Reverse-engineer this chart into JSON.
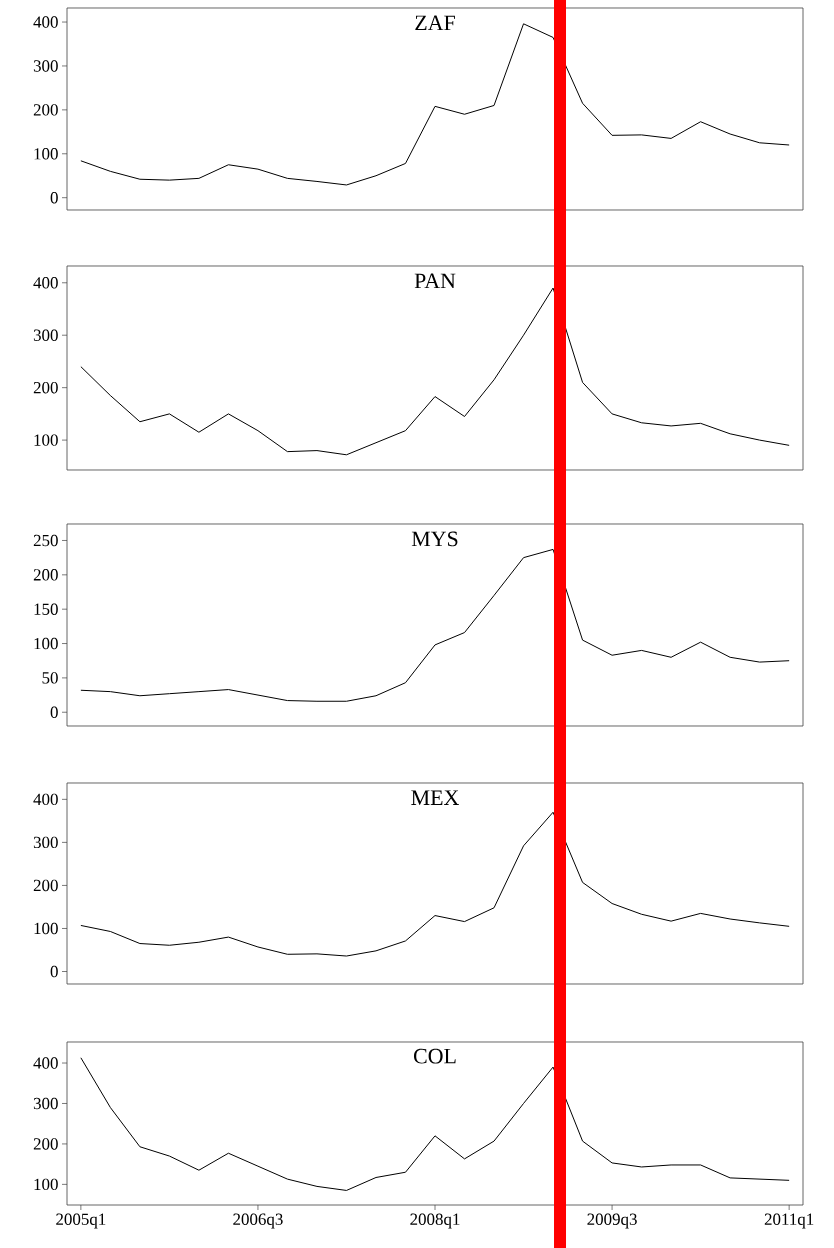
{
  "chart_data": [
    {
      "type": "line",
      "title": "ZAF",
      "categories": [
        null,
        null,
        null,
        null,
        null,
        null,
        null,
        null,
        null,
        null,
        null,
        null,
        null,
        null,
        null,
        null,
        null,
        null,
        null,
        null,
        null,
        null,
        null,
        null,
        null
      ],
      "series": [
        {
          "color": "#000000",
          "values": [
            84,
            60,
            42,
            40,
            44,
            75,
            65,
            44,
            37,
            29,
            50,
            78,
            208,
            190,
            210,
            396,
            365,
            215,
            142,
            143,
            135,
            173,
            145,
            125,
            120
          ]
        }
      ],
      "ylim": [
        -28,
        432
      ],
      "yticks": [
        0,
        100,
        200,
        300,
        400
      ],
      "tick_labels": "y",
      "grid": false
    },
    {
      "type": "line",
      "title": "PAN",
      "categories": [
        null,
        null,
        null,
        null,
        null,
        null,
        null,
        null,
        null,
        null,
        null,
        null,
        null,
        null,
        null,
        null,
        null,
        null,
        null,
        null,
        null,
        null,
        null,
        null,
        null
      ],
      "series": [
        {
          "color": "#000000",
          "values": [
            240,
            185,
            135,
            150,
            115,
            150,
            118,
            78,
            80,
            72,
            95,
            118,
            183,
            145,
            215,
            300,
            390,
            210,
            150,
            133,
            127,
            132,
            112,
            100,
            90
          ]
        }
      ],
      "ylim": [
        43,
        432
      ],
      "yticks": [
        100,
        200,
        300,
        400
      ],
      "tick_labels": "y",
      "grid": false
    },
    {
      "type": "line",
      "title": "MYS",
      "categories": [
        null,
        null,
        null,
        null,
        null,
        null,
        null,
        null,
        null,
        null,
        null,
        null,
        null,
        null,
        null,
        null,
        null,
        null,
        null,
        null,
        null,
        null,
        null,
        null,
        null
      ],
      "series": [
        {
          "color": "#000000",
          "values": [
            32,
            30,
            24,
            27,
            30,
            33,
            25,
            17,
            16,
            16,
            24,
            43,
            98,
            116,
            170,
            225,
            237,
            105,
            83,
            90,
            80,
            102,
            80,
            73,
            75
          ]
        }
      ],
      "ylim": [
        -20,
        274
      ],
      "yticks": [
        0,
        50,
        100,
        150,
        200,
        250
      ],
      "tick_labels": "y",
      "grid": false
    },
    {
      "type": "line",
      "title": "MEX",
      "categories": [
        null,
        null,
        null,
        null,
        null,
        null,
        null,
        null,
        null,
        null,
        null,
        null,
        null,
        null,
        null,
        null,
        null,
        null,
        null,
        null,
        null,
        null,
        null,
        null,
        null
      ],
      "series": [
        {
          "color": "#000000",
          "values": [
            107,
            93,
            65,
            61,
            68,
            80,
            57,
            40,
            41,
            36,
            48,
            71,
            130,
            116,
            148,
            292,
            370,
            207,
            158,
            133,
            117,
            135,
            122,
            113,
            105
          ]
        }
      ],
      "ylim": [
        -29,
        438
      ],
      "yticks": [
        0,
        100,
        200,
        300,
        400
      ],
      "tick_labels": "y",
      "grid": false
    },
    {
      "type": "line",
      "title": "COL",
      "categories": [
        "2005q1",
        null,
        null,
        null,
        null,
        null,
        "2006q3",
        null,
        null,
        null,
        null,
        null,
        "2008q1",
        null,
        null,
        null,
        null,
        null,
        "2009q3",
        null,
        null,
        null,
        null,
        null,
        "2011q1"
      ],
      "series": [
        {
          "color": "#000000",
          "values": [
            413,
            290,
            193,
            170,
            135,
            177,
            145,
            113,
            95,
            85,
            117,
            130,
            220,
            163,
            207,
            300,
            390,
            207,
            153,
            143,
            148,
            148,
            116,
            113,
            110
          ]
        }
      ],
      "ylim": [
        49,
        452
      ],
      "yticks": [
        100,
        200,
        300,
        400
      ],
      "grid": false
    }
  ]
}
